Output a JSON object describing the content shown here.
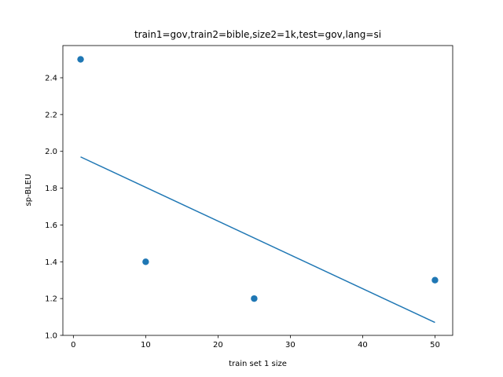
{
  "chart_data": {
    "type": "scatter",
    "title": "train1=gov,train2=bible,size2=1k,test=gov,lang=si",
    "xlabel": "train set 1 size",
    "ylabel": "sp-BLEU",
    "xlim": [
      -1.45,
      52.45
    ],
    "ylim": [
      1.0,
      2.575
    ],
    "xticks": [
      0,
      10,
      20,
      30,
      40,
      50
    ],
    "xtick_labels": [
      "0",
      "10",
      "20",
      "30",
      "40",
      "50"
    ],
    "yticks": [
      1.0,
      1.2,
      1.4,
      1.6,
      1.8,
      2.0,
      2.2,
      2.4
    ],
    "ytick_labels": [
      "1.0",
      "1.2",
      "1.4",
      "1.6",
      "1.8",
      "2.0",
      "2.2",
      "2.4"
    ],
    "grid": false,
    "points": [
      {
        "x": 1,
        "y": 2.5
      },
      {
        "x": 10,
        "y": 1.4
      },
      {
        "x": 25,
        "y": 1.2
      },
      {
        "x": 50,
        "y": 1.3
      }
    ],
    "trend_line": [
      {
        "x": 1,
        "y": 1.97
      },
      {
        "x": 50,
        "y": 1.07
      }
    ],
    "colors": {
      "series": "#1f77b4",
      "axes": "#000000",
      "background": "#ffffff"
    }
  }
}
